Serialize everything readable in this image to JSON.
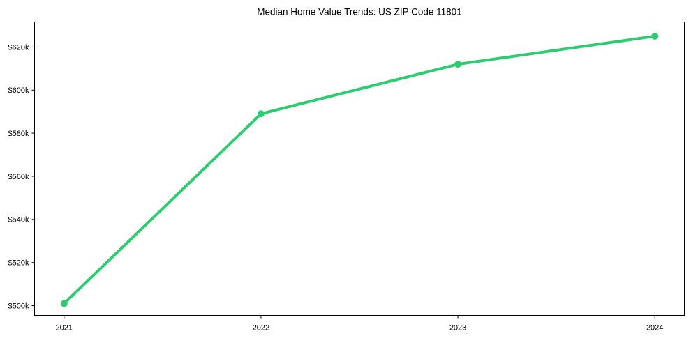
{
  "page": {
    "background_color": "#ffffff"
  },
  "chart_data": {
    "type": "line",
    "title": "Median Home Value Trends: US ZIP Code 11801",
    "x": [
      2021,
      2022,
      2023,
      2024
    ],
    "x_tick_labels": [
      "2021",
      "2022",
      "2023",
      "2024"
    ],
    "values": [
      501,
      589,
      612,
      625
    ],
    "y_unit": "thousand USD ($...k)",
    "y_ticks": [
      500,
      520,
      540,
      560,
      580,
      600,
      620
    ],
    "y_tick_labels": [
      "$500k",
      "$520k",
      "$540k",
      "$560k",
      "$580k",
      "$600k",
      "$620k"
    ],
    "xlim": [
      2020.85,
      2024.15
    ],
    "ylim": [
      495.5,
      631.6
    ],
    "xlabel": "",
    "ylabel": "",
    "grid": false,
    "legend": "none",
    "line_color": "#2ecc71",
    "marker": "circle",
    "marker_color": "#2ecc71",
    "axis_color": "#000000",
    "text_color": "#000000"
  }
}
